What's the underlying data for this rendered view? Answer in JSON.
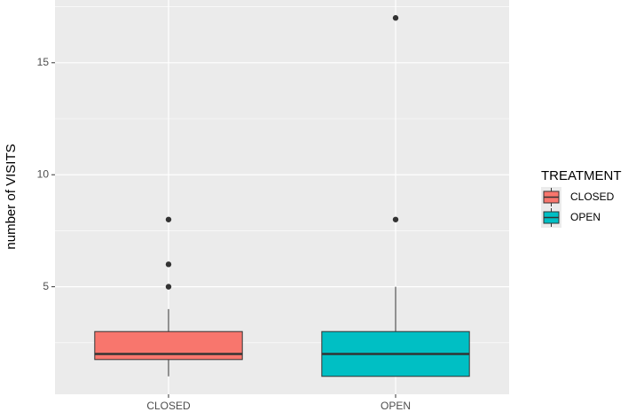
{
  "chart_data": {
    "type": "box",
    "y_label": "number of VISITS",
    "legend_title": "TREATMENT",
    "categories": [
      "CLOSED",
      "OPEN"
    ],
    "series": [
      {
        "name": "CLOSED",
        "color": "#F8766D",
        "whisker_low": 1,
        "q1": 1.75,
        "median": 2,
        "q3": 3,
        "whisker_high": 4,
        "outliers": [
          5,
          6,
          8
        ]
      },
      {
        "name": "OPEN",
        "color": "#00BFC4",
        "whisker_low": 1,
        "q1": 1,
        "median": 2,
        "q3": 3,
        "whisker_high": 5,
        "outliers": [
          8,
          17
        ]
      }
    ],
    "ylim": [
      0.2,
      17.8
    ],
    "yticks": [
      5,
      10,
      15
    ],
    "minor_yticks": [
      2.5,
      7.5,
      12.5,
      17.5
    ],
    "grid": true,
    "legend_position": "right"
  }
}
